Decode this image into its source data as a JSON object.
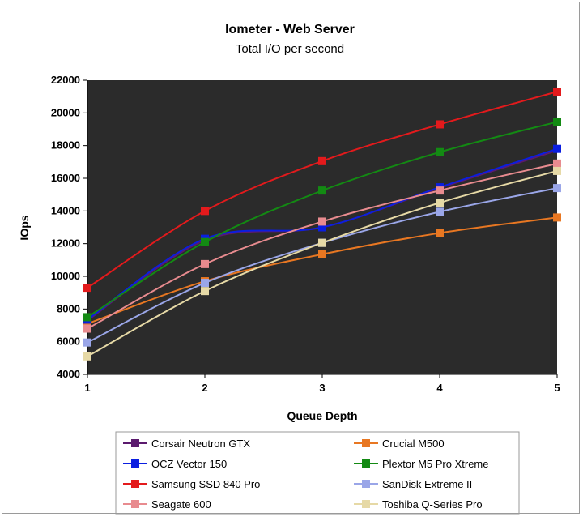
{
  "chart_data": {
    "type": "line",
    "title": "Iometer - Web Server",
    "subtitle": "Total I/O per second",
    "xlabel": "Queue Depth",
    "ylabel": "IOps",
    "x": [
      1,
      2,
      3,
      4,
      5
    ],
    "ylim": [
      4000,
      22000
    ],
    "yticks": [
      4000,
      6000,
      8000,
      10000,
      12000,
      14000,
      16000,
      18000,
      20000,
      22000
    ],
    "grid": false,
    "plot_background": "#2b2b2b",
    "legend_position": "bottom",
    "series": [
      {
        "name": "Corsair Neutron GTX",
        "color": "#5b1a6e",
        "values": [
          7300,
          12200,
          13000,
          15400,
          17700
        ],
        "visible_marker": false
      },
      {
        "name": "Crucial M500",
        "color": "#e87722",
        "values": [
          7100,
          9700,
          11350,
          12650,
          13600
        ]
      },
      {
        "name": "OCZ Vector 150",
        "color": "#0b1ee0",
        "values": [
          7350,
          12300,
          13000,
          15450,
          17800
        ]
      },
      {
        "name": "Plextor M5 Pro Xtreme",
        "color": "#138a13",
        "values": [
          7500,
          12100,
          15250,
          17600,
          19450
        ]
      },
      {
        "name": "Samsung SSD 840 Pro",
        "color": "#e31a1c",
        "values": [
          9300,
          14000,
          17050,
          19300,
          21300
        ]
      },
      {
        "name": "SanDisk Extreme II",
        "color": "#9aa6e8",
        "values": [
          5950,
          9600,
          12050,
          13950,
          15400
        ]
      },
      {
        "name": "Seagate 600",
        "color": "#e88b8f",
        "values": [
          6800,
          10750,
          13350,
          15250,
          16900
        ]
      },
      {
        "name": "Toshiba Q-Series Pro",
        "color": "#e6d9a6",
        "values": [
          5100,
          9100,
          12050,
          14500,
          16450
        ]
      }
    ]
  }
}
